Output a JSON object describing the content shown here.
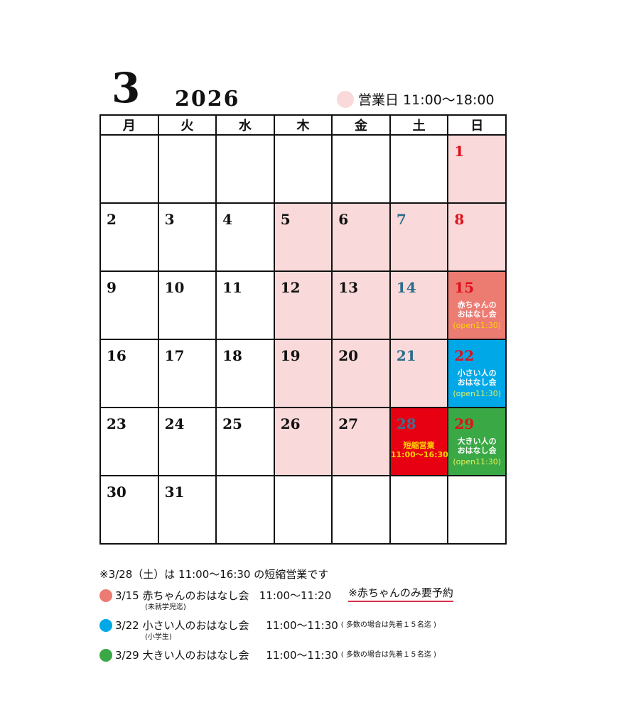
{
  "header": {
    "month": "3",
    "year": "2026",
    "legend_label": "営業日 11:00〜18:00",
    "legend_color": "#f9d9d9"
  },
  "weekdays": [
    "月",
    "火",
    "水",
    "木",
    "金",
    "土",
    "日"
  ],
  "colors": {
    "open": "#f9d9d9",
    "saturday_text": "#2a6b8c",
    "sunday_text": "#e0101b",
    "baby": "#ec7b72",
    "small": "#00a8e8",
    "big": "#3aa845",
    "short": "#e60012"
  },
  "weeks": [
    [
      null,
      null,
      null,
      null,
      null,
      null,
      {
        "day": "1",
        "bg": "open"
      }
    ],
    [
      {
        "day": "2"
      },
      {
        "day": "3"
      },
      {
        "day": "4"
      },
      {
        "day": "5",
        "bg": "open"
      },
      {
        "day": "6",
        "bg": "open"
      },
      {
        "day": "7",
        "bg": "open"
      },
      {
        "day": "8",
        "bg": "open"
      }
    ],
    [
      {
        "day": "9"
      },
      {
        "day": "10"
      },
      {
        "day": "11"
      },
      {
        "day": "12",
        "bg": "open"
      },
      {
        "day": "13",
        "bg": "open"
      },
      {
        "day": "14",
        "bg": "open"
      },
      {
        "day": "15",
        "bg": "baby",
        "event": [
          "赤ちゃんの",
          "おはなし会",
          "(open11:30)"
        ],
        "event_color": "#ffd400"
      }
    ],
    [
      {
        "day": "16"
      },
      {
        "day": "17"
      },
      {
        "day": "18"
      },
      {
        "day": "19",
        "bg": "open"
      },
      {
        "day": "20",
        "bg": "open"
      },
      {
        "day": "21",
        "bg": "open"
      },
      {
        "day": "22",
        "bg": "small",
        "event": [
          "小さい人の",
          "おはなし会",
          "(open11:30)"
        ],
        "event_color": "#e6f25a"
      }
    ],
    [
      {
        "day": "23"
      },
      {
        "day": "24"
      },
      {
        "day": "25"
      },
      {
        "day": "26",
        "bg": "open"
      },
      {
        "day": "27",
        "bg": "open"
      },
      {
        "day": "28",
        "bg": "short",
        "num_color": "#4a6a8a",
        "event": [
          "短縮営業",
          "11:00〜16:30"
        ],
        "event_color": "#ffd400"
      },
      {
        "day": "29",
        "bg": "big",
        "event": [
          "大きい人の",
          "おはなし会",
          "(open11:30)"
        ],
        "event_color": "#e6f25a"
      }
    ],
    [
      {
        "day": "30"
      },
      {
        "day": "31"
      },
      null,
      null,
      null,
      null,
      null
    ]
  ],
  "notes": {
    "short_notice": "※3/28（土）は 11:00〜16:30 の短縮営業です",
    "events": [
      {
        "color": "#ec7b72",
        "date": "3/15",
        "title": "赤ちゃんのおはなし会",
        "time": "11:00〜11:20",
        "extra": "※赤ちゃんのみ要予約"
      },
      {
        "color": "#00a8e8",
        "date": "3/22",
        "ruby": "(未就学児迄)",
        "title": "小さい人のおはなし会",
        "time": "11:00〜11:30",
        "small": "( 多数の場合は先着１５名迄 )"
      },
      {
        "color": "#3aa845",
        "date": "3/29",
        "ruby": "(小学生)",
        "title": "大きい人のおはなし会",
        "time": "11:00〜11:30",
        "small": "( 多数の場合は先着１５名迄 )"
      }
    ]
  }
}
